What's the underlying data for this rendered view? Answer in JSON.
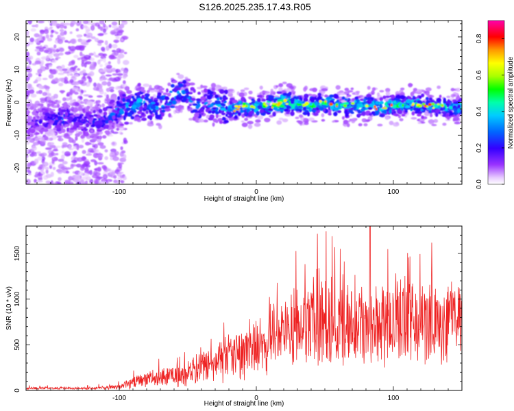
{
  "title": "S126.2025.235.17.43.R05",
  "chart_data": [
    {
      "type": "heatmap",
      "name": "spectrogram",
      "xlabel": "Height of straight line (km)",
      "ylabel": "Frequency (Hz)",
      "xlim": [
        -168,
        150
      ],
      "ylim": [
        -25,
        25
      ],
      "xticks": [
        -100,
        0,
        100
      ],
      "xtick_labels": [
        "-100",
        "0",
        "100"
      ],
      "yticks": [
        -20,
        -10,
        0,
        10,
        20
      ],
      "ytick_labels": [
        "-20",
        "-10",
        "0",
        "10",
        "20"
      ],
      "colorbar": {
        "label": "Normalized spectral amplitude",
        "range": [
          0.0,
          0.9
        ],
        "ticks": [
          0.0,
          0.2,
          0.4,
          0.6,
          0.8
        ],
        "tick_labels": [
          "0.0",
          "0.2",
          "0.4",
          "0.6",
          "0.8"
        ]
      },
      "ridge": {
        "x": [
          -165,
          -150,
          -140,
          -130,
          -120,
          -110,
          -100,
          -92,
          -85,
          -78,
          -70,
          -63,
          -58,
          -52,
          -45,
          -40,
          -35,
          -30,
          -25,
          -20,
          -15,
          -10,
          -5,
          0,
          10,
          20,
          30,
          40,
          50,
          60,
          70,
          80,
          90,
          100,
          110,
          120,
          130,
          140,
          148
        ],
        "freq": [
          -6,
          -5.5,
          -5,
          -6,
          -6,
          -5,
          -2,
          -1.5,
          0,
          -1,
          -1.5,
          1,
          3,
          3,
          -1,
          -1,
          0,
          -1,
          -1,
          -2,
          -2,
          -1,
          -1.5,
          -1.5,
          -1,
          0,
          -0.5,
          -1,
          0,
          -1,
          -1,
          -1,
          -1.5,
          -1,
          -0.5,
          -1,
          -1,
          -1.5,
          -1.5
        ],
        "amplitude": [
          0.15,
          0.2,
          0.25,
          0.2,
          0.2,
          0.25,
          0.3,
          0.35,
          0.35,
          0.35,
          0.3,
          0.4,
          0.35,
          0.3,
          0.3,
          0.25,
          0.3,
          0.35,
          0.4,
          0.4,
          0.4,
          0.45,
          0.45,
          0.45,
          0.5,
          0.55,
          0.5,
          0.5,
          0.5,
          0.45,
          0.45,
          0.45,
          0.45,
          0.45,
          0.45,
          0.45,
          0.4,
          0.4,
          0.4
        ]
      }
    },
    {
      "type": "line",
      "name": "snr",
      "xlabel": "Height of straight line (km)",
      "ylabel": "SNR (10 * v/v)",
      "xlim": [
        -168,
        150
      ],
      "ylim": [
        0,
        1800
      ],
      "xticks": [
        -100,
        0,
        100
      ],
      "xtick_labels": [
        "-100",
        "0",
        "100"
      ],
      "yticks": [
        0,
        500,
        1000,
        1500
      ],
      "ytick_labels": [
        "0",
        "500",
        "1000",
        "1500"
      ],
      "color": "#ee2222",
      "envelope_x": [
        -168,
        -120,
        -100,
        -90,
        -80,
        -60,
        -50,
        -40,
        -30,
        -20,
        -10,
        0,
        10,
        20,
        30,
        40,
        60,
        80,
        100,
        120,
        150
      ],
      "envelope_mean": [
        25,
        25,
        40,
        90,
        140,
        150,
        200,
        250,
        300,
        350,
        420,
        520,
        580,
        650,
        700,
        720,
        760,
        780,
        770,
        760,
        780
      ],
      "envelope_spread": [
        15,
        15,
        30,
        70,
        100,
        110,
        140,
        170,
        200,
        250,
        300,
        330,
        380,
        400,
        420,
        450,
        460,
        470,
        460,
        450,
        430
      ],
      "peak_value": 1800
    }
  ]
}
